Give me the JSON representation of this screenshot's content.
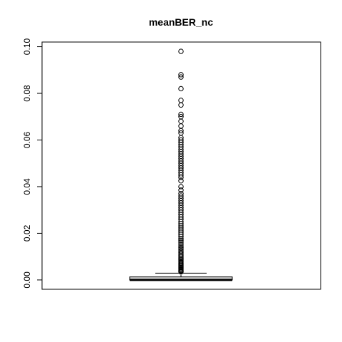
{
  "chart_data": {
    "type": "boxplot",
    "title": "meanBER_nc",
    "xlabel": "",
    "ylabel": "",
    "ylim": [
      -0.004,
      0.102
    ],
    "yticks": [
      0.0,
      0.02,
      0.04,
      0.06,
      0.08,
      0.1
    ],
    "ytick_labels": [
      "0.00",
      "0.02",
      "0.04",
      "0.06",
      "0.08",
      "0.10"
    ],
    "grid": false,
    "box": {
      "min": 0.0,
      "q1": 0.0,
      "median": 0.0,
      "q3": 0.0013,
      "whisker_low": 0.0,
      "whisker_high": 0.0029
    },
    "colors": {
      "box_fill": "#d3d3d3",
      "stroke": "#000000"
    },
    "outliers": [
      0.0035,
      0.0038,
      0.0041,
      0.0045,
      0.0049,
      0.0053,
      0.0057,
      0.0062,
      0.0066,
      0.0071,
      0.0076,
      0.0081,
      0.0086,
      0.0092,
      0.0098,
      0.0104,
      0.011,
      0.0117,
      0.0124,
      0.0131,
      0.0138,
      0.0146,
      0.0154,
      0.0162,
      0.017,
      0.0178,
      0.0187,
      0.0196,
      0.0205,
      0.0214,
      0.0223,
      0.0232,
      0.0241,
      0.025,
      0.026,
      0.027,
      0.028,
      0.029,
      0.03,
      0.031,
      0.032,
      0.033,
      0.034,
      0.035,
      0.036,
      0.037,
      0.0385,
      0.04,
      0.0425,
      0.044,
      0.045,
      0.046,
      0.047,
      0.048,
      0.049,
      0.05,
      0.051,
      0.052,
      0.053,
      0.054,
      0.055,
      0.056,
      0.057,
      0.058,
      0.059,
      0.06,
      0.061,
      0.063,
      0.064,
      0.066,
      0.068,
      0.07,
      0.071,
      0.075,
      0.077,
      0.082,
      0.087,
      0.088,
      0.098
    ]
  }
}
